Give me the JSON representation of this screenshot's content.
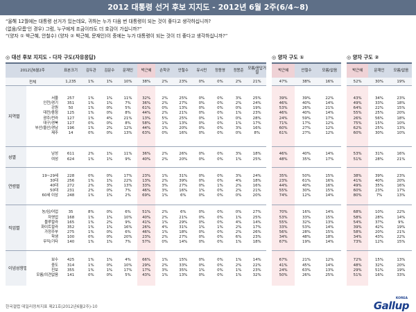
{
  "title": "2012 대통령 선거 후보 지지도 - 2012년 6월 2주(6/4~8)",
  "questions": [
    "“올해 12월에는 대통령 선거가 있는데요, 귀하는 누가 다음 번 대통령이 되는 것이 좋다고 생각하십니까?",
    "(없음/모름'인 경우) 그럼, 누구에게 조금이라도 더 호감이 가십니까?”",
    "“(양자 ① 박근혜, 안철수) (양자 ② 박근혜, 문재인)이 중에는 누가 대통령이 되는 것이 더 좋다고 생각하십니까?”"
  ],
  "sections": {
    "multi": "◎ 대선 후보 지지도 - 다자 구도(자유응답)",
    "pair1": "◎ 양자 구도 ①",
    "pair2": "◎ 양자 구도 ②"
  },
  "header": {
    "date": "2012년6월2주",
    "base": "표본크기",
    "multi": [
      "김두관",
      "김문수",
      "문재인",
      "박근혜",
      "손학규",
      "안철수",
      "유시민",
      "정동영",
      "정몽준",
      "모름/응답거절"
    ],
    "pair1": [
      "박근혜",
      "안철수",
      "모름/없음"
    ],
    "pair2": [
      "박근혜",
      "문재인",
      "모름/없음"
    ]
  },
  "total": {
    "label": "전체",
    "base": "1,235",
    "multi": [
      "1%",
      "1%",
      "10%",
      "38%",
      "2%",
      "23%",
      "0%",
      "0%",
      "2%",
      "21%"
    ],
    "pair1": [
      "47%",
      "38%",
      "16%"
    ],
    "pair2": [
      "52%",
      "30%",
      "19%"
    ]
  },
  "groups": [
    {
      "name": "지역별",
      "labels": [
        "서울",
        "인천/경기",
        "강원",
        "대전/충청",
        "광주/전라",
        "대구/경북",
        "부산/울산/경남",
        "제주"
      ],
      "base": [
        "257",
        "351",
        "50",
        "125",
        "127",
        "127",
        "196",
        "14"
      ],
      "multi": [
        [
          "1%",
          "1%",
          "1%",
          "1%",
          "1%",
          "0%",
          "1%",
          "0%"
        ],
        [
          "1%",
          "1%",
          "0%",
          "0%",
          "4%",
          "0%",
          "2%",
          "0%"
        ],
        [
          "11%",
          "7%",
          "5%",
          "8%",
          "21%",
          "8%",
          "12%",
          "13%"
        ],
        [
          "32%",
          "36%",
          "61%",
          "44%",
          "13%",
          "58%",
          "44%",
          "63%"
        ],
        [
          "2%",
          "2%",
          "0%",
          "2%",
          "5%",
          "1%",
          "1%",
          "0%"
        ],
        [
          "25%",
          "27%",
          "13%",
          "21%",
          "25%",
          "13%",
          "20%",
          "16%"
        ],
        [
          "0%",
          "0%",
          "0%",
          "0%",
          "0%",
          "0%",
          "0%",
          "0%"
        ],
        [
          "0%",
          "0%",
          "0%",
          "0%",
          "1%",
          "0%",
          "0%",
          "0%"
        ],
        [
          "3%",
          "2%",
          "0%",
          "1%",
          "0%",
          "1%",
          "3%",
          "0%"
        ],
        [
          "25%",
          "24%",
          "19%",
          "23%",
          "28%",
          "17%",
          "16%",
          "8%"
        ]
      ],
      "pair1": [
        [
          "39%",
          "46%",
          "53%",
          "46%",
          "24%",
          "71%",
          "60%",
          "61%"
        ],
        [
          "39%",
          "40%",
          "26%",
          "40%",
          "59%",
          "17%",
          "27%",
          "27%"
        ],
        [
          "22%",
          "14%",
          "21%",
          "14%",
          "17%",
          "12%",
          "12%",
          "12%"
        ]
      ],
      "pair2": [
        [
          "43%",
          "49%",
          "64%",
          "55%",
          "26%",
          "75%",
          "62%",
          "60%"
        ],
        [
          "34%",
          "33%",
          "22%",
          "25%",
          "56%",
          "15%",
          "25%",
          "30%"
        ],
        [
          "23%",
          "18%",
          "15%",
          "20%",
          "18%",
          "10%",
          "13%",
          "10%"
        ]
      ]
    },
    {
      "name": "성별",
      "labels": [
        "남성",
        "여성"
      ],
      "base": [
        "611",
        "624"
      ],
      "multi": [
        [
          "2%",
          "1%"
        ],
        [
          "1%",
          "1%"
        ],
        [
          "11%",
          "9%"
        ],
        [
          "36%",
          "40%"
        ],
        [
          "2%",
          "2%"
        ],
        [
          "26%",
          "20%"
        ],
        [
          "0%",
          "0%"
        ],
        [
          "0%",
          "0%"
        ],
        [
          "3%",
          "1%"
        ],
        [
          "18%",
          "25%"
        ]
      ],
      "pair1": [
        [
          "46%",
          "48%"
        ],
        [
          "40%",
          "35%"
        ],
        [
          "14%",
          "17%"
        ]
      ],
      "pair2": [
        [
          "53%",
          "51%"
        ],
        [
          "31%",
          "28%"
        ],
        [
          "16%",
          "21%"
        ]
      ]
    },
    {
      "name": "연령별",
      "labels": [
        "19~29세",
        "30대",
        "40대",
        "50대",
        "60세 이상"
      ],
      "base": [
        "228",
        "256",
        "272",
        "231",
        "248"
      ],
      "multi": [
        [
          "0%",
          "1%",
          "2%",
          "2%",
          "1%"
        ],
        [
          "0%",
          "1%",
          "3%",
          "0%",
          "1%"
        ],
        [
          "17%",
          "22%",
          "13%",
          "7%",
          "2%"
        ],
        [
          "23%",
          "13%",
          "33%",
          "46%",
          "69%"
        ],
        [
          "1%",
          "2%",
          "3%",
          "3%",
          "1%"
        ],
        [
          "31%",
          "39%",
          "27%",
          "16%",
          "6%"
        ],
        [
          "0%",
          "0%",
          "0%",
          "1%",
          "0%"
        ],
        [
          "0%",
          "0%",
          "1%",
          "0%",
          "0%"
        ],
        [
          "3%",
          "4%",
          "2%",
          "2%",
          "0%"
        ],
        [
          "24%",
          "18%",
          "16%",
          "21%",
          "20%"
        ]
      ],
      "pair1": [
        [
          "35%",
          "23%",
          "44%",
          "55%",
          "74%"
        ],
        [
          "50%",
          "61%",
          "40%",
          "30%",
          "12%"
        ],
        [
          "15%",
          "16%",
          "16%",
          "15%",
          "14%"
        ]
      ],
      "pair2": [
        [
          "38%",
          "41%",
          "49%",
          "60%",
          "80%"
        ],
        [
          "39%",
          "40%",
          "35%",
          "23%",
          "7%"
        ],
        [
          "23%",
          "20%",
          "16%",
          "17%",
          "13%"
        ]
      ]
    },
    {
      "name": "직업별",
      "labels": [
        "농/임/어업",
        "자영업",
        "블루칼라",
        "화이트칼라",
        "가정주부",
        "학생",
        "무직/기타"
      ],
      "base": [
        "35",
        "168",
        "165",
        "352",
        "275",
        "100",
        "140"
      ],
      "multi": [
        [
          "8%",
          "1%",
          "1%",
          "1%",
          "1%",
          "0%",
          "1%"
        ],
        [
          "0%",
          "1%",
          "2%",
          "1%",
          "0%",
          "0%",
          "1%"
        ],
        [
          "6%",
          "10%",
          "9%",
          "16%",
          "6%",
          "20%",
          "7%"
        ],
        [
          "51%",
          "40%",
          "41%",
          "26%",
          "46%",
          "23%",
          "57%"
        ],
        [
          "2%",
          "2%",
          "1%",
          "4%",
          "1%",
          "2%",
          "0%"
        ],
        [
          "6%",
          "21%",
          "29%",
          "31%",
          "18%",
          "27%",
          "14%"
        ],
        [
          "0%",
          "0%",
          "0%",
          "1%",
          "0%",
          "0%",
          "0%"
        ],
        [
          "0%",
          "0%",
          "0%",
          "1%",
          "0%",
          "0%",
          "0%"
        ],
        [
          "0%",
          "1%",
          "4%",
          "2%",
          "2%",
          "6%",
          "1%"
        ],
        [
          "27%",
          "25%",
          "14%",
          "17%",
          "26%",
          "23%",
          "18%"
        ]
      ],
      "pair1": [
        [
          "70%",
          "53%",
          "55%",
          "33%",
          "56%",
          "34%",
          "67%"
        ],
        [
          "16%",
          "33%",
          "32%",
          "53%",
          "28%",
          "48%",
          "19%"
        ],
        [
          "14%",
          "15%",
          "13%",
          "14%",
          "15%",
          "18%",
          "14%"
        ]
      ],
      "pair2": [
        [
          "68%",
          "58%",
          "54%",
          "39%",
          "58%",
          "34%",
          "73%"
        ],
        [
          "10%",
          "28%",
          "37%",
          "42%",
          "20%",
          "43%",
          "12%"
        ],
        [
          "22%",
          "14%",
          "9%",
          "19%",
          "21%",
          "22%",
          "15%"
        ]
      ]
    },
    {
      "name": "이념성향별",
      "labels": [
        "보수",
        "중도",
        "진보",
        "모름/의견없음"
      ],
      "base": [
        "425",
        "314",
        "355",
        "141"
      ],
      "multi": [
        [
          "1%",
          "1%",
          "1%",
          "0%"
        ],
        [
          "1%",
          "0%",
          "1%",
          "0%"
        ],
        [
          "4%",
          "10%",
          "17%",
          "5%"
        ],
        [
          "66%",
          "29%",
          "17%",
          "43%"
        ],
        [
          "1%",
          "2%",
          "3%",
          "1%"
        ],
        [
          "15%",
          "33%",
          "35%",
          "13%"
        ],
        [
          "0%",
          "0%",
          "1%",
          "0%"
        ],
        [
          "0%",
          "0%",
          "0%",
          "0%"
        ],
        [
          "1%",
          "2%",
          "1%",
          "1%"
        ],
        [
          "14%",
          "22%",
          "23%",
          "32%"
        ]
      ],
      "pair1": [
        [
          "67%",
          "41%",
          "24%",
          "50%"
        ],
        [
          "21%",
          "45%",
          "63%",
          "26%"
        ],
        [
          "12%",
          "14%",
          "13%",
          "25%"
        ]
      ],
      "pair2": [
        [
          "72%",
          "48%",
          "29%",
          "51%"
        ],
        [
          "15%",
          "32%",
          "51%",
          "16%"
        ],
        [
          "13%",
          "20%",
          "19%",
          "33%"
        ]
      ]
    }
  ],
  "footer": "한국갤럽 데일리정치지표 제21호(2012년6월2주)-10",
  "logo": {
    "small": "KOREA",
    "word": "Gallup"
  }
}
